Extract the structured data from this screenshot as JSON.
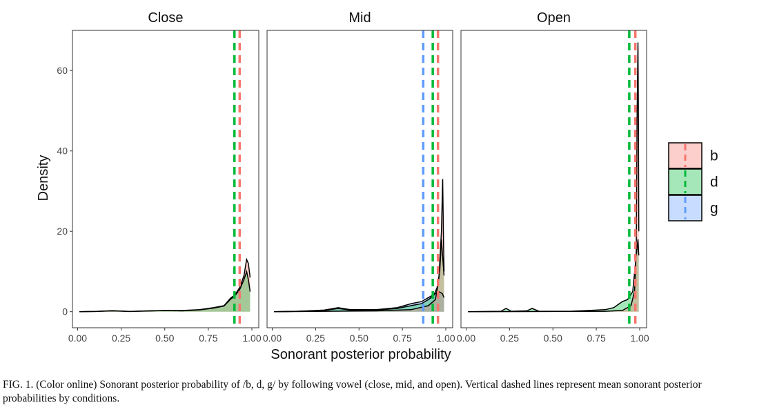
{
  "chart_data": {
    "type": "area",
    "title": "",
    "xlabel": "Sonorant posterior probability",
    "ylabel": "Density",
    "xlim": [
      0,
      1
    ],
    "ylim": [
      -4,
      70
    ],
    "x_ticks": [
      "0.00",
      "0.25",
      "0.50",
      "0.75",
      "1.00"
    ],
    "y_ticks": [
      "0",
      "20",
      "40",
      "60"
    ],
    "x_tick_values": [
      0,
      0.25,
      0.5,
      0.75,
      1.0
    ],
    "y_tick_values": [
      0,
      20,
      40,
      60
    ],
    "grid": false,
    "legend_position": "right",
    "legend": [
      {
        "label": "b",
        "fill": "#F8766D",
        "line": "#F8766D"
      },
      {
        "label": "d",
        "fill": "#00BA38",
        "line": "#00BA38"
      },
      {
        "label": "g",
        "fill": "#619CFF",
        "line": "#619CFF"
      }
    ],
    "facets": [
      {
        "title": "Close",
        "means": [
          {
            "series": "b",
            "x": 0.93
          },
          {
            "series": "d",
            "x": 0.9
          }
        ],
        "series": [
          {
            "name": "b",
            "points": [
              [
                0.01,
                0
              ],
              [
                0.1,
                0.05
              ],
              [
                0.2,
                0.2
              ],
              [
                0.3,
                0.05
              ],
              [
                0.4,
                0.2
              ],
              [
                0.5,
                0.3
              ],
              [
                0.6,
                0.3
              ],
              [
                0.7,
                0.5
              ],
              [
                0.78,
                1.0
              ],
              [
                0.84,
                1.5
              ],
              [
                0.88,
                3.5
              ],
              [
                0.9,
                4.0
              ],
              [
                0.93,
                6.0
              ],
              [
                0.955,
                9.0
              ],
              [
                0.97,
                13.0
              ],
              [
                0.98,
                12.0
              ],
              [
                0.99,
                8.5
              ]
            ]
          },
          {
            "name": "d",
            "points": [
              [
                0.01,
                0
              ],
              [
                0.1,
                0.05
              ],
              [
                0.2,
                0.25
              ],
              [
                0.3,
                0.05
              ],
              [
                0.4,
                0.15
              ],
              [
                0.5,
                0.3
              ],
              [
                0.6,
                0.2
              ],
              [
                0.7,
                0.45
              ],
              [
                0.78,
                0.9
              ],
              [
                0.84,
                1.4
              ],
              [
                0.88,
                3.2
              ],
              [
                0.9,
                3.8
              ],
              [
                0.93,
                5.5
              ],
              [
                0.955,
                8.0
              ],
              [
                0.97,
                10.0
              ],
              [
                0.98,
                8.0
              ],
              [
                0.99,
                5.0
              ]
            ]
          }
        ]
      },
      {
        "title": "Mid",
        "means": [
          {
            "series": "g",
            "x": 0.87
          },
          {
            "series": "d",
            "x": 0.925
          },
          {
            "series": "b",
            "x": 0.955
          }
        ],
        "series": [
          {
            "name": "g",
            "points": [
              [
                0.01,
                0
              ],
              [
                0.15,
                0.1
              ],
              [
                0.3,
                0.4
              ],
              [
                0.38,
                1.0
              ],
              [
                0.45,
                0.5
              ],
              [
                0.6,
                0.5
              ],
              [
                0.72,
                1.0
              ],
              [
                0.8,
                2.0
              ],
              [
                0.86,
                2.5
              ],
              [
                0.9,
                3.5
              ],
              [
                0.94,
                4.5
              ],
              [
                0.96,
                5.0
              ],
              [
                0.98,
                4.5
              ],
              [
                0.99,
                3.5
              ]
            ]
          },
          {
            "name": "d",
            "points": [
              [
                0.01,
                0
              ],
              [
                0.15,
                0.1
              ],
              [
                0.3,
                0.3
              ],
              [
                0.38,
                0.8
              ],
              [
                0.45,
                0.4
              ],
              [
                0.6,
                0.4
              ],
              [
                0.72,
                0.8
              ],
              [
                0.8,
                1.5
              ],
              [
                0.86,
                2.0
              ],
              [
                0.9,
                3.0
              ],
              [
                0.93,
                4.0
              ],
              [
                0.95,
                6.0
              ],
              [
                0.965,
                10.0
              ],
              [
                0.975,
                18.0
              ],
              [
                0.985,
                12.0
              ],
              [
                0.99,
                9.0
              ]
            ]
          },
          {
            "name": "b",
            "points": [
              [
                0.01,
                0
              ],
              [
                0.3,
                0.1
              ],
              [
                0.6,
                0.2
              ],
              [
                0.8,
                0.5
              ],
              [
                0.9,
                1.5
              ],
              [
                0.94,
                3.0
              ],
              [
                0.96,
                8.0
              ],
              [
                0.975,
                20.0
              ],
              [
                0.982,
                33.0
              ],
              [
                0.986,
                20.0
              ],
              [
                0.99,
                10.0
              ]
            ]
          }
        ]
      },
      {
        "title": "Open",
        "means": [
          {
            "series": "d",
            "x": 0.94
          },
          {
            "series": "b",
            "x": 0.975
          }
        ],
        "series": [
          {
            "name": "d",
            "points": [
              [
                0.01,
                0
              ],
              [
                0.2,
                0.1
              ],
              [
                0.23,
                0.8
              ],
              [
                0.26,
                0.1
              ],
              [
                0.35,
                0.2
              ],
              [
                0.38,
                0.8
              ],
              [
                0.42,
                0.1
              ],
              [
                0.6,
                0.1
              ],
              [
                0.7,
                0.3
              ],
              [
                0.8,
                0.5
              ],
              [
                0.85,
                1.0
              ],
              [
                0.9,
                2.5
              ],
              [
                0.93,
                3.0
              ],
              [
                0.96,
                5.0
              ],
              [
                0.98,
                14.0
              ],
              [
                0.99,
                18.0
              ],
              [
                0.995,
                14.0
              ]
            ]
          },
          {
            "name": "b",
            "points": [
              [
                0.01,
                0
              ],
              [
                0.5,
                0.05
              ],
              [
                0.8,
                0.1
              ],
              [
                0.9,
                0.3
              ],
              [
                0.95,
                1.5
              ],
              [
                0.97,
                5.0
              ],
              [
                0.98,
                15.0
              ],
              [
                0.985,
                48.0
              ],
              [
                0.99,
                67.0
              ],
              [
                0.993,
                48.0
              ],
              [
                0.995,
                20.0
              ]
            ]
          }
        ]
      }
    ]
  },
  "caption": "FIG. 1. (Color online) Sonorant posterior probability of /b, d, g/ by following vowel (close, mid, and open). Vertical dashed lines represent mean sonorant posterior probabilities by conditions."
}
